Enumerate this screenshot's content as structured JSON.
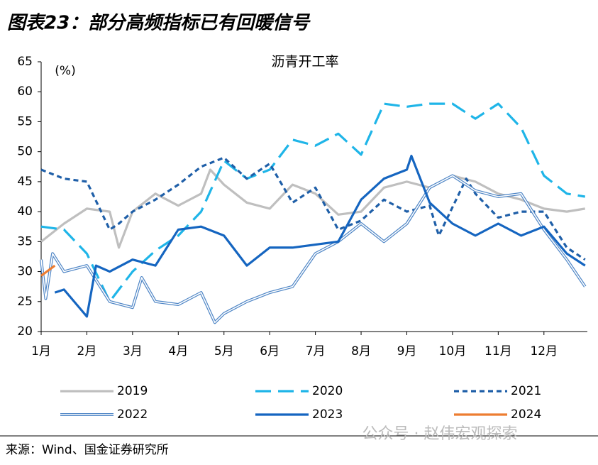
{
  "header": {
    "title": "图表23：部分高频指标已有回暖信号"
  },
  "chart_data": {
    "type": "line",
    "title": "沥青开工率",
    "y_label": "(%)",
    "xlim": [
      1,
      12.95
    ],
    "xticks": [
      {
        "value": 1,
        "label": "1月"
      },
      {
        "value": 2,
        "label": "2月"
      },
      {
        "value": 3,
        "label": "3月"
      },
      {
        "value": 4,
        "label": "4月"
      },
      {
        "value": 5,
        "label": "5月"
      },
      {
        "value": 6,
        "label": "6月"
      },
      {
        "value": 7,
        "label": "7月"
      },
      {
        "value": 8,
        "label": "8月"
      },
      {
        "value": 9,
        "label": "9月"
      },
      {
        "value": 10,
        "label": "10月"
      },
      {
        "value": 11,
        "label": "11月"
      },
      {
        "value": 12,
        "label": "12月"
      }
    ],
    "ylim": [
      20,
      65
    ],
    "yticks": [
      20,
      25,
      30,
      35,
      40,
      45,
      50,
      55,
      60,
      65
    ],
    "series": [
      {
        "name": "2019",
        "color": "#bfbfbf",
        "dash": "solid",
        "x": [
          1,
          1.5,
          2,
          2.5,
          2.7,
          3,
          3.5,
          4,
          4.5,
          4.7,
          5,
          5.5,
          6,
          6.5,
          7,
          7.5,
          8,
          8.5,
          9,
          9.5,
          10,
          10.5,
          11,
          11.5,
          12,
          12.5,
          12.9
        ],
        "values": [
          35,
          38,
          40.5,
          40,
          34,
          40,
          43,
          41,
          43,
          47,
          44.5,
          41.5,
          40.5,
          44.5,
          43,
          39.5,
          40,
          44,
          45,
          44,
          46,
          45,
          43,
          42,
          40.5,
          40,
          40.5
        ]
      },
      {
        "name": "2020",
        "color": "#1fb5e8",
        "dash": "long",
        "x": [
          1,
          1.5,
          2,
          2.5,
          3,
          3.5,
          4,
          4.5,
          5,
          5.5,
          6,
          6.5,
          7,
          7.5,
          8,
          8.5,
          9,
          9.5,
          10,
          10.5,
          11,
          11.5,
          12,
          12.5,
          12.9
        ],
        "values": [
          37.5,
          37,
          33,
          25,
          30,
          33.5,
          36,
          40,
          48.5,
          45.5,
          47,
          52,
          51,
          53,
          49.5,
          58,
          57.5,
          58,
          58,
          55.5,
          58,
          54,
          46,
          43,
          42.5
        ]
      },
      {
        "name": "2021",
        "color": "#1f5fa8",
        "dash": "short",
        "x": [
          1,
          1.5,
          2,
          2.5,
          2.7,
          3,
          3.5,
          4,
          4.5,
          5,
          5.5,
          6,
          6.5,
          7,
          7.5,
          8,
          8.5,
          9,
          9.5,
          9.7,
          10.3,
          10.5,
          11,
          11.5,
          12,
          12.5,
          12.9
        ],
        "values": [
          47,
          45.5,
          45,
          37,
          38,
          40,
          42,
          44.5,
          47.5,
          49,
          45.5,
          48,
          41.5,
          44,
          37,
          38.5,
          42,
          40,
          41,
          36,
          45.5,
          43,
          39,
          40,
          40,
          34,
          32
        ]
      },
      {
        "name": "2022",
        "color": "#4f86c6",
        "dash": "double",
        "x": [
          1,
          1.1,
          1.25,
          1.5,
          2,
          2.5,
          3,
          3.2,
          3.5,
          4,
          4.5,
          4.8,
          5,
          5.5,
          6,
          6.5,
          7,
          7.5,
          8,
          8.5,
          9,
          9.5,
          10,
          10.5,
          11,
          11.5,
          12,
          12.5,
          12.9
        ],
        "values": [
          32,
          25.5,
          33,
          30,
          31,
          25,
          24,
          29,
          25,
          24.5,
          26.5,
          21.5,
          23,
          25,
          26.5,
          27.5,
          33,
          35,
          38,
          35,
          38,
          44,
          46,
          43.5,
          42.5,
          43,
          37,
          32,
          27.5
        ]
      },
      {
        "name": "2023",
        "color": "#1565c0",
        "dash": "solid",
        "x": [
          1.3,
          1.5,
          2,
          2.2,
          2.5,
          3,
          3.5,
          4,
          4.5,
          5,
          5.5,
          6,
          6.5,
          7,
          7.5,
          8,
          8.5,
          9,
          9.1,
          9.5,
          10,
          10.5,
          11,
          11.5,
          12,
          12.5,
          12.9
        ],
        "values": [
          26.5,
          27,
          22.5,
          31,
          30,
          32,
          31,
          37,
          37.5,
          36,
          31,
          34,
          34,
          34.5,
          35,
          42,
          45.5,
          47,
          49.3,
          41.5,
          38,
          36,
          38,
          36,
          37.5,
          33,
          31
        ]
      },
      {
        "name": "2024",
        "color": "#ed7d31",
        "dash": "solid",
        "x": [
          1,
          1.3
        ],
        "values": [
          29.3,
          31
        ]
      }
    ]
  },
  "footer": {
    "source": "来源：Wind、国金证券研究所",
    "watermark": "公众号 · 赵伟宏观探索"
  }
}
